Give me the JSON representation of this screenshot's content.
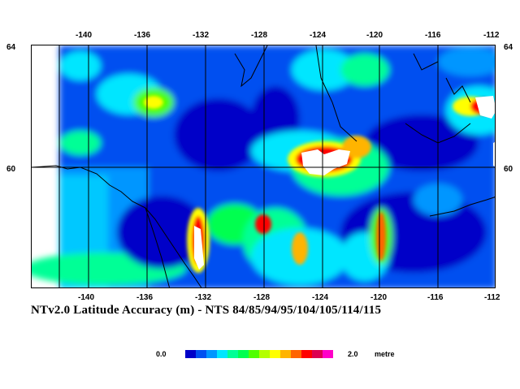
{
  "map": {
    "top_lon_ticks": [
      "-140",
      "-136",
      "-132",
      "-128",
      "-124",
      "-120",
      "-116",
      "-112"
    ],
    "bottom_lon_ticks": [
      "-140",
      "-136",
      "-132",
      "-128",
      "-124",
      "-120",
      "-116",
      "-112"
    ],
    "left_lat_ticks": [
      "64",
      "60"
    ],
    "right_lat_ticks": [
      "64",
      "60"
    ]
  },
  "title": "NTv2.0 Latitude Accuracy (m) - NTS 84/85/94/95/104/105/114/115",
  "legend": {
    "min_label": "0.0",
    "max_label": "2.0",
    "unit": "metre",
    "colors": [
      "#0000c8",
      "#0050f0",
      "#0096ff",
      "#00e6ff",
      "#00ff96",
      "#00ff50",
      "#50ff00",
      "#b4ff00",
      "#ffff00",
      "#ffb400",
      "#ff6400",
      "#ff0000",
      "#dc0050",
      "#ff00c8"
    ]
  }
}
